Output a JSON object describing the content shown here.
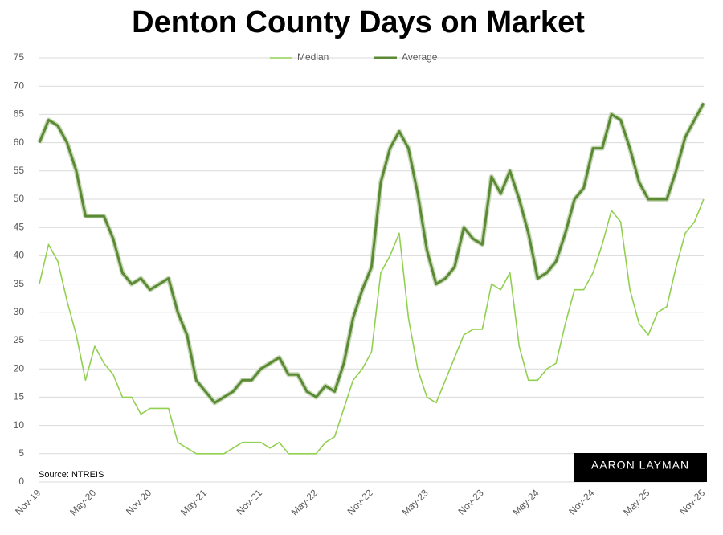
{
  "chart_data": {
    "type": "line",
    "title": "Denton County Days on Market",
    "source": "Source: NTREIS",
    "logo": "AARON LAYMAN",
    "categories": [
      "Nov-19",
      null,
      null,
      null,
      null,
      null,
      "May-20",
      null,
      null,
      null,
      null,
      null,
      "Nov-20",
      null,
      null,
      null,
      null,
      null,
      "May-21",
      null,
      null,
      null,
      null,
      null,
      "Nov-21",
      null,
      null,
      null,
      null,
      null,
      "May-22",
      null,
      null,
      null,
      null,
      null,
      "Nov-22",
      null,
      null,
      null,
      null,
      null,
      "May-23",
      null,
      null,
      null,
      null,
      null,
      "Nov-23",
      null,
      null,
      null,
      null,
      null,
      "May-24",
      null,
      null,
      null,
      null,
      null,
      "Nov-24",
      null,
      null,
      null,
      null,
      null,
      "May-25",
      null,
      null,
      null,
      null,
      null,
      "Nov-25"
    ],
    "series": [
      {
        "name": "Median",
        "color": "#92d050",
        "values": [
          35,
          42,
          39,
          32,
          26,
          18,
          24,
          21,
          19,
          15,
          15,
          12,
          13,
          13,
          13,
          7,
          6,
          5,
          5,
          5,
          5,
          6,
          7,
          7,
          7,
          6,
          7,
          5,
          5,
          5,
          5,
          7,
          8,
          13,
          18,
          20,
          23,
          37,
          40,
          44,
          29,
          20,
          15,
          14,
          18,
          22,
          26,
          27,
          27,
          35,
          34,
          37,
          24,
          18,
          18,
          20,
          21,
          28,
          34,
          34,
          37,
          42,
          48,
          46,
          34,
          28,
          26,
          30,
          31,
          38,
          44,
          46,
          50
        ]
      },
      {
        "name": "Average",
        "color": "#5b8a34",
        "values": [
          60,
          64,
          63,
          60,
          55,
          47,
          47,
          47,
          43,
          37,
          35,
          36,
          34,
          35,
          36,
          30,
          26,
          18,
          16,
          14,
          15,
          16,
          18,
          18,
          20,
          21,
          22,
          19,
          19,
          16,
          15,
          17,
          16,
          21,
          29,
          34,
          38,
          53,
          59,
          62,
          59,
          51,
          41,
          35,
          36,
          38,
          45,
          43,
          42,
          54,
          51,
          55,
          50,
          44,
          36,
          37,
          39,
          44,
          50,
          52,
          59,
          59,
          65,
          64,
          59,
          53,
          50,
          50,
          50,
          55,
          61,
          64,
          67
        ]
      }
    ],
    "ylim": [
      0,
      75
    ],
    "yticks": [
      0,
      5,
      10,
      15,
      20,
      25,
      30,
      35,
      40,
      45,
      50,
      55,
      60,
      65,
      70,
      75
    ],
    "grid": true,
    "legend": "top"
  }
}
